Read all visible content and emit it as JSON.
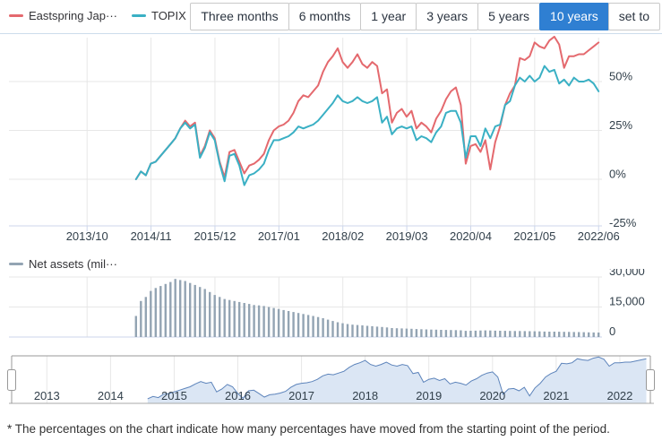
{
  "legend": {
    "fund_label": "Eastspring Jap···",
    "topix_label": "TOPIX",
    "assets_label": "Net assets (mil···"
  },
  "range_buttons": [
    {
      "label": "Three months",
      "selected": false
    },
    {
      "label": "6 months",
      "selected": false
    },
    {
      "label": "1 year",
      "selected": false
    },
    {
      "label": "3 years",
      "selected": false
    },
    {
      "label": "5 years",
      "selected": false
    },
    {
      "label": "10 years",
      "selected": true
    },
    {
      "label": "set to",
      "selected": false
    }
  ],
  "footer_note": "* The percentages on the chart indicate how many percentages have moved from the starting point of the period.",
  "colors": {
    "fund_line": "#e4696e",
    "topix_line": "#3ab0c4",
    "assets_bar": "#93a4b3",
    "selected_button": "#2f7fd2",
    "gridline": "#e7e7e7",
    "axis_line": "#ccd6eb",
    "tick_label": "#32404b",
    "navigator_fill": "#dbe6f4",
    "navigator_line": "#5d84bb",
    "navigator_outline": "#999999"
  },
  "chart_data": [
    {
      "id": "main",
      "type": "line",
      "x_start": "2014/08",
      "x_end": "2022/06",
      "x_interval": "monthly",
      "x_tick_labels": [
        "2013/10",
        "2014/11",
        "2015/12",
        "2017/01",
        "2018/02",
        "2019/03",
        "2020/04",
        "2021/05",
        "2022/06"
      ],
      "y_ticks": [
        50,
        25,
        0,
        -25
      ],
      "y_tick_labels": [
        "50%",
        "25%",
        "0%",
        "-25%"
      ],
      "ylim": [
        -24,
        74
      ],
      "unit": "%",
      "series": [
        {
          "name": "Eastspring Jap···",
          "color": "#e4696e",
          "values": [
            0,
            4,
            2,
            8,
            9,
            12,
            15,
            18,
            21,
            26,
            30,
            27,
            29,
            12,
            17,
            25,
            21,
            9,
            1,
            14,
            15,
            9,
            3,
            7,
            8,
            10,
            13,
            20,
            25,
            27,
            28,
            30,
            34,
            40,
            43,
            42,
            45,
            48,
            55,
            60,
            63,
            67,
            60,
            57,
            60,
            64,
            59,
            57,
            60,
            58,
            44,
            46,
            29,
            34,
            36,
            32,
            35,
            26,
            29,
            27,
            24,
            31,
            35,
            41,
            45,
            47,
            38,
            8,
            17,
            18,
            14,
            20,
            5,
            19,
            27,
            38,
            44,
            48,
            62,
            61,
            63,
            70,
            68,
            67,
            71,
            73,
            69,
            57,
            63,
            63,
            64,
            64,
            66,
            68,
            70
          ]
        },
        {
          "name": "TOPIX",
          "color": "#3ab0c4",
          "values": [
            0,
            4,
            2,
            8,
            9,
            12,
            15,
            18,
            21,
            26,
            29,
            26,
            28,
            11,
            16,
            24,
            20,
            8,
            -1,
            12,
            13,
            7,
            -3,
            2,
            3,
            5,
            8,
            15,
            20,
            20,
            21,
            22,
            24,
            27,
            26,
            27,
            28,
            30,
            33,
            36,
            39,
            43,
            40,
            39,
            40,
            42,
            40,
            39,
            40,
            42,
            29,
            32,
            23,
            26,
            27,
            26,
            27,
            20,
            22,
            21,
            19,
            24,
            27,
            34,
            35,
            35,
            29,
            11,
            22,
            22,
            17,
            26,
            21,
            27,
            28,
            38,
            40,
            48,
            52,
            50,
            53,
            50,
            52,
            58,
            55,
            56,
            49,
            51,
            48,
            52,
            50,
            50,
            51,
            49,
            45
          ]
        }
      ]
    },
    {
      "id": "assets",
      "type": "bar",
      "name": "Net assets (mil···",
      "color": "#93a4b3",
      "y_ticks": [
        30000,
        15000,
        0
      ],
      "y_tick_labels": [
        "30,000",
        "15,000",
        "0"
      ],
      "ylim": [
        0,
        31000
      ],
      "values": [
        10500,
        18000,
        20000,
        23000,
        24500,
        25500,
        26500,
        27500,
        29000,
        28500,
        28000,
        27000,
        26000,
        25000,
        24000,
        22500,
        21000,
        20000,
        19000,
        18500,
        18000,
        17500,
        17000,
        16500,
        16000,
        15800,
        15500,
        15000,
        14500,
        14000,
        13500,
        13000,
        12500,
        12000,
        11500,
        11000,
        10500,
        10000,
        9400,
        8700,
        8000,
        7400,
        6900,
        6500,
        6200,
        6000,
        5800,
        5600,
        5400,
        5200,
        5000,
        4800,
        4500,
        4400,
        4300,
        4200,
        4100,
        4000,
        3900,
        3800,
        3700,
        3650,
        3600,
        3550,
        3500,
        3450,
        3350,
        3100,
        3150,
        3200,
        3250,
        3300,
        3250,
        3200,
        3150,
        3100,
        3050,
        3000,
        3000,
        2950,
        2900,
        2850,
        2800,
        2750,
        2700,
        2700,
        2650,
        2600,
        2550,
        2500,
        2450,
        2400,
        2350,
        2300,
        2250
      ]
    },
    {
      "id": "navigator",
      "type": "area",
      "x_tick_labels": [
        "2013",
        "2014",
        "2015",
        "2016",
        "2017",
        "2018",
        "2019",
        "2020",
        "2021",
        "2022"
      ],
      "source_series": "main fund series (same monthly values)",
      "range_selected": "full"
    }
  ]
}
